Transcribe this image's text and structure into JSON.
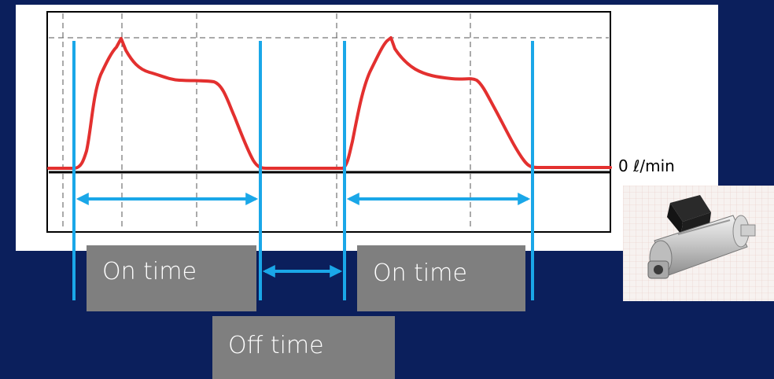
{
  "labels": {
    "on_time_1": "On time",
    "on_time_2": "On time",
    "off_time": "Off time",
    "flow_unit": "0 ℓ/min"
  },
  "colors": {
    "background": "#0b1f5c",
    "flow_curve": "#e3302f",
    "markers": "#1aa7e8",
    "label_box": "#7f7f7f",
    "baseline": "#000000"
  },
  "photo": {
    "subject": "solenoid-valve-photo"
  }
}
